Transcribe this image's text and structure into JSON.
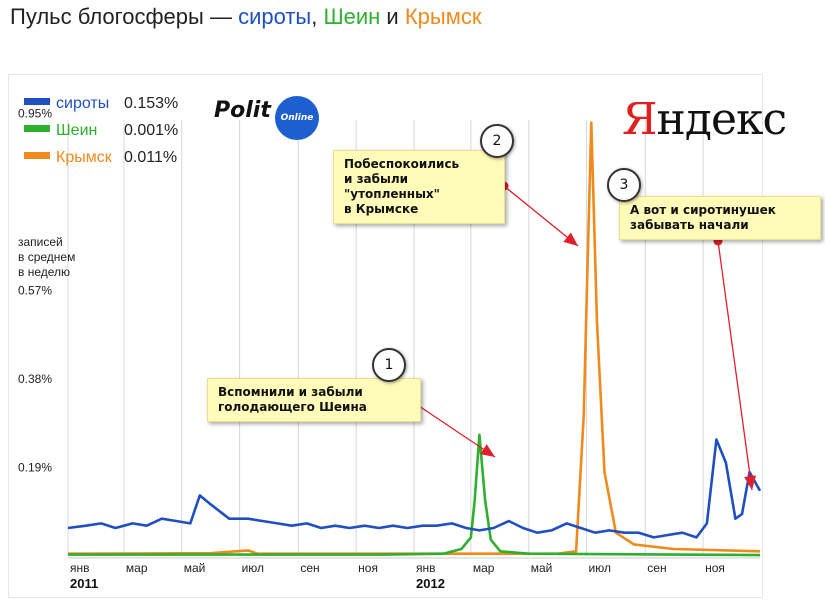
{
  "title": {
    "prefix": "Пульс блогосферы — ",
    "s1": "сироты",
    "sep": ", ",
    "s2": "Шеин",
    "and": " и ",
    "s3": "Крымск"
  },
  "logos": {
    "polit": "Polit",
    "online": "Online",
    "yandex_first": "Я",
    "yandex_rest": "ндекс"
  },
  "colors": {
    "sirota": "#1f4fc0",
    "shein": "#2db02d",
    "krymsk": "#f08a1c",
    "annotation_arrow": "#e0202a"
  },
  "legend": [
    {
      "name": "сироты",
      "value": "0.153%",
      "color": "#1f4fc0"
    },
    {
      "name": "Шеин",
      "value": "0.001%",
      "color": "#2db02d"
    },
    {
      "name": "Крымск",
      "value": "0.011%",
      "color": "#f08a1c"
    }
  ],
  "annotations": [
    {
      "num": "1",
      "text": [
        "Вспомнили и забыли",
        "голодающего Шеина"
      ]
    },
    {
      "num": "2",
      "text": [
        "Побеспокоились",
        "и забыли",
        "\"утопленных\"",
        "в Крымске"
      ]
    },
    {
      "num": "3",
      "text": [
        "А вот и сиротинушек",
        "забывать начали"
      ]
    }
  ],
  "chart_data": {
    "type": "line",
    "ylabel": [
      "записей",
      "в среднем",
      "в неделю"
    ],
    "yticks": [
      "0.19%",
      "0.38%",
      "0.57%",
      "0.95%"
    ],
    "ytick_values": [
      0.19,
      0.38,
      0.57,
      0.95
    ],
    "ylim": [
      0,
      1.0
    ],
    "xlim": [
      "2011-01-01",
      "2012-12-31"
    ],
    "xticks": [
      {
        "label": "янв",
        "year": "2011",
        "date": "2011-01-01"
      },
      {
        "label": "мар",
        "date": "2011-03-01"
      },
      {
        "label": "май",
        "date": "2011-05-01"
      },
      {
        "label": "июл",
        "date": "2011-07-01"
      },
      {
        "label": "сен",
        "date": "2011-09-01"
      },
      {
        "label": "ноя",
        "date": "2011-11-01"
      },
      {
        "label": "янв",
        "year": "2012",
        "date": "2012-01-01"
      },
      {
        "label": "мар",
        "date": "2012-03-01"
      },
      {
        "label": "май",
        "date": "2012-05-01"
      },
      {
        "label": "июл",
        "date": "2012-07-01"
      },
      {
        "label": "сен",
        "date": "2012-09-01"
      },
      {
        "label": "ноя",
        "date": "2012-11-01"
      }
    ],
    "grid": true,
    "legend_position": "top-left",
    "series": [
      {
        "name": "сироты",
        "color": "#1f4fc0",
        "points": [
          [
            "2011-01-01",
            0.06
          ],
          [
            "2011-01-20",
            0.065
          ],
          [
            "2011-02-05",
            0.07
          ],
          [
            "2011-02-20",
            0.06
          ],
          [
            "2011-03-10",
            0.07
          ],
          [
            "2011-03-25",
            0.065
          ],
          [
            "2011-04-10",
            0.08
          ],
          [
            "2011-04-25",
            0.075
          ],
          [
            "2011-05-10",
            0.07
          ],
          [
            "2011-05-20",
            0.13
          ],
          [
            "2011-06-01",
            0.11
          ],
          [
            "2011-06-20",
            0.08
          ],
          [
            "2011-07-10",
            0.08
          ],
          [
            "2011-07-25",
            0.075
          ],
          [
            "2011-08-10",
            0.07
          ],
          [
            "2011-08-25",
            0.065
          ],
          [
            "2011-09-10",
            0.07
          ],
          [
            "2011-09-25",
            0.06
          ],
          [
            "2011-10-10",
            0.065
          ],
          [
            "2011-10-25",
            0.06
          ],
          [
            "2011-11-10",
            0.065
          ],
          [
            "2011-11-25",
            0.06
          ],
          [
            "2011-12-10",
            0.065
          ],
          [
            "2011-12-25",
            0.06
          ],
          [
            "2012-01-10",
            0.065
          ],
          [
            "2012-01-25",
            0.065
          ],
          [
            "2012-02-10",
            0.07
          ],
          [
            "2012-02-25",
            0.06
          ],
          [
            "2012-03-10",
            0.055
          ],
          [
            "2012-03-25",
            0.06
          ],
          [
            "2012-04-10",
            0.075
          ],
          [
            "2012-04-25",
            0.06
          ],
          [
            "2012-05-10",
            0.05
          ],
          [
            "2012-05-25",
            0.055
          ],
          [
            "2012-06-10",
            0.07
          ],
          [
            "2012-06-25",
            0.06
          ],
          [
            "2012-07-10",
            0.05
          ],
          [
            "2012-07-25",
            0.055
          ],
          [
            "2012-08-10",
            0.05
          ],
          [
            "2012-08-25",
            0.05
          ],
          [
            "2012-09-10",
            0.04
          ],
          [
            "2012-09-25",
            0.045
          ],
          [
            "2012-10-10",
            0.05
          ],
          [
            "2012-10-25",
            0.04
          ],
          [
            "2012-11-05",
            0.07
          ],
          [
            "2012-11-15",
            0.25
          ],
          [
            "2012-11-25",
            0.2
          ],
          [
            "2012-12-05",
            0.08
          ],
          [
            "2012-12-12",
            0.09
          ],
          [
            "2012-12-20",
            0.18
          ],
          [
            "2012-12-31",
            0.14
          ]
        ]
      },
      {
        "name": "Шеин",
        "color": "#2db02d",
        "points": [
          [
            "2011-01-01",
            0.003
          ],
          [
            "2011-06-01",
            0.003
          ],
          [
            "2011-12-01",
            0.003
          ],
          [
            "2012-02-01",
            0.005
          ],
          [
            "2012-02-20",
            0.015
          ],
          [
            "2012-03-01",
            0.04
          ],
          [
            "2012-03-05",
            0.12
          ],
          [
            "2012-03-10",
            0.26
          ],
          [
            "2012-03-16",
            0.12
          ],
          [
            "2012-03-22",
            0.035
          ],
          [
            "2012-04-01",
            0.01
          ],
          [
            "2012-05-01",
            0.005
          ],
          [
            "2012-12-31",
            0.002
          ]
        ]
      },
      {
        "name": "Крымск",
        "color": "#f08a1c",
        "points": [
          [
            "2011-01-01",
            0.005
          ],
          [
            "2011-06-01",
            0.006
          ],
          [
            "2011-07-10",
            0.012
          ],
          [
            "2011-07-20",
            0.005
          ],
          [
            "2011-12-01",
            0.005
          ],
          [
            "2012-06-01",
            0.005
          ],
          [
            "2012-06-20",
            0.01
          ],
          [
            "2012-06-28",
            0.3
          ],
          [
            "2012-07-02",
            0.62
          ],
          [
            "2012-07-06",
            0.93
          ],
          [
            "2012-07-12",
            0.5
          ],
          [
            "2012-07-20",
            0.18
          ],
          [
            "2012-08-01",
            0.05
          ],
          [
            "2012-08-20",
            0.025
          ],
          [
            "2012-10-01",
            0.015
          ],
          [
            "2012-12-31",
            0.01
          ]
        ]
      }
    ]
  }
}
